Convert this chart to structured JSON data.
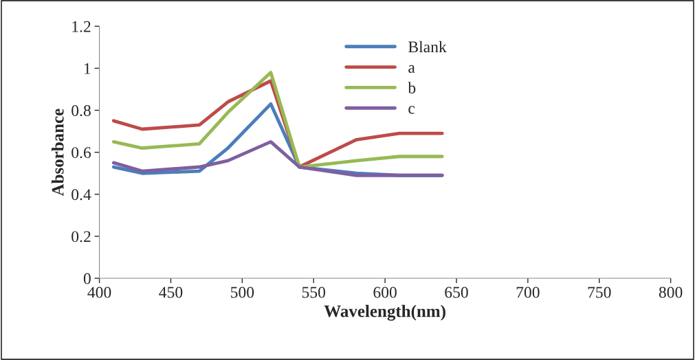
{
  "chart_data": {
    "type": "line",
    "xlabel": "Wavelength(nm)",
    "ylabel": "Absorbance",
    "x": [
      410,
      430,
      470,
      490,
      520,
      540,
      580,
      610,
      640
    ],
    "series": [
      {
        "name": "Blank",
        "color": "#4a7ebb",
        "values": [
          0.53,
          0.5,
          0.51,
          0.62,
          0.83,
          0.53,
          0.5,
          0.49,
          0.49
        ]
      },
      {
        "name": "a",
        "color": "#be4b48",
        "values": [
          0.75,
          0.71,
          0.73,
          0.84,
          0.94,
          0.53,
          0.66,
          0.69,
          0.69
        ]
      },
      {
        "name": "b",
        "color": "#98b954",
        "values": [
          0.65,
          0.62,
          0.64,
          0.79,
          0.98,
          0.53,
          0.56,
          0.58,
          0.58
        ]
      },
      {
        "name": "c",
        "color": "#7d60a0",
        "values": [
          0.55,
          0.51,
          0.53,
          0.56,
          0.65,
          0.53,
          0.49,
          0.49,
          0.49
        ]
      }
    ],
    "xlim": [
      400,
      800
    ],
    "xticks": [
      400,
      450,
      500,
      550,
      600,
      650,
      700,
      750,
      800
    ],
    "ylim": [
      0,
      1.2
    ],
    "yticks": [
      0,
      0.2,
      0.4,
      0.6,
      0.8,
      1,
      1.2
    ],
    "legend": "top",
    "grid": false,
    "marker": "none",
    "line_style": "solid"
  }
}
